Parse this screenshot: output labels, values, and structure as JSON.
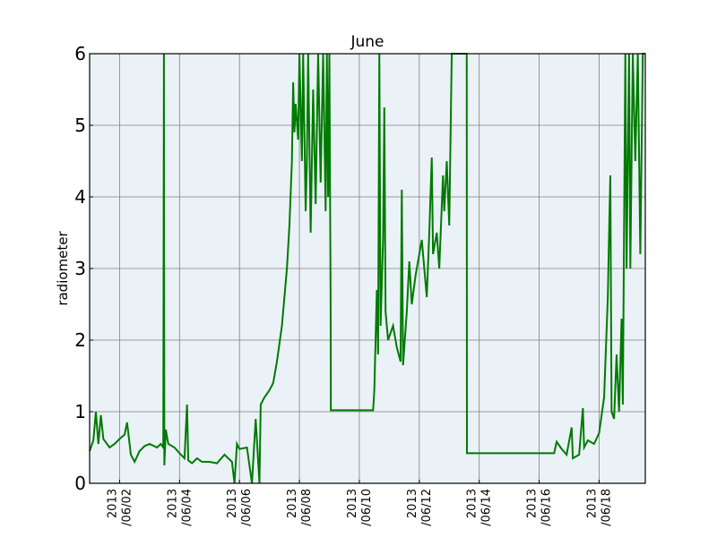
{
  "chart_data": {
    "type": "line",
    "title": "June",
    "xlabel": "",
    "ylabel": "radiometer",
    "ylim": [
      0,
      6
    ],
    "xlim": [
      "2013-06-01 00:00",
      "2013-06-19 13:00"
    ],
    "y_ticks": [
      "0",
      "1",
      "2",
      "3",
      "4",
      "5",
      "6"
    ],
    "x_ticks": [
      {
        "date": "2013-06-02",
        "label_line1": "2013",
        "label_line2": "/06/02"
      },
      {
        "date": "2013-06-04",
        "label_line1": "2013",
        "label_line2": "/06/04"
      },
      {
        "date": "2013-06-06",
        "label_line1": "2013",
        "label_line2": "/06/06"
      },
      {
        "date": "2013-06-08",
        "label_line1": "2013",
        "label_line2": "/06/08"
      },
      {
        "date": "2013-06-10",
        "label_line1": "2013",
        "label_line2": "/06/10"
      },
      {
        "date": "2013-06-12",
        "label_line1": "2013",
        "label_line2": "/06/12"
      },
      {
        "date": "2013-06-14",
        "label_line1": "2013",
        "label_line2": "/06/14"
      },
      {
        "date": "2013-06-16",
        "label_line1": "2013",
        "label_line2": "/06/16"
      },
      {
        "date": "2013-06-18",
        "label_line1": "2013",
        "label_line2": "/06/18"
      }
    ],
    "grid": true,
    "colors": {
      "line": "#007a00",
      "plot_background": "#eaf2f8",
      "grid": "#7f7f7f"
    },
    "series": [
      {
        "points": [
          [
            "2013-06-01 00:00",
            0.45
          ],
          [
            "2013-06-01 03:00",
            0.6
          ],
          [
            "2013-06-01 05:00",
            1.0
          ],
          [
            "2013-06-01 07:00",
            0.55
          ],
          [
            "2013-06-01 09:00",
            0.95
          ],
          [
            "2013-06-01 11:00",
            0.62
          ],
          [
            "2013-06-01 16:00",
            0.5
          ],
          [
            "2013-06-01 20:00",
            0.55
          ],
          [
            "2013-06-02 00:00",
            0.62
          ],
          [
            "2013-06-02 04:00",
            0.68
          ],
          [
            "2013-06-02 06:00",
            0.85
          ],
          [
            "2013-06-02 09:00",
            0.4
          ],
          [
            "2013-06-02 12:00",
            0.3
          ],
          [
            "2013-06-02 16:00",
            0.45
          ],
          [
            "2013-06-02 20:00",
            0.52
          ],
          [
            "2013-06-03 00:00",
            0.55
          ],
          [
            "2013-06-03 06:00",
            0.5
          ],
          [
            "2013-06-03 09:00",
            0.55
          ],
          [
            "2013-06-03 11:00",
            0.5
          ],
          [
            "2013-06-03 11:30",
            6.0
          ],
          [
            "2013-06-03 11:50",
            0.25
          ],
          [
            "2013-06-03 13:00",
            0.75
          ],
          [
            "2013-06-03 15:00",
            0.55
          ],
          [
            "2013-06-03 20:00",
            0.5
          ],
          [
            "2013-06-04 00:00",
            0.42
          ],
          [
            "2013-06-04 04:00",
            0.35
          ],
          [
            "2013-06-04 06:00",
            1.1
          ],
          [
            "2013-06-04 07:00",
            0.32
          ],
          [
            "2013-06-04 10:00",
            0.28
          ],
          [
            "2013-06-04 14:00",
            0.35
          ],
          [
            "2013-06-04 18:00",
            0.3
          ],
          [
            "2013-06-05 00:00",
            0.3
          ],
          [
            "2013-06-05 06:00",
            0.28
          ],
          [
            "2013-06-05 12:00",
            0.4
          ],
          [
            "2013-06-05 18:00",
            0.3
          ],
          [
            "2013-06-05 20:00",
            0.0
          ],
          [
            "2013-06-05 22:00",
            0.55
          ],
          [
            "2013-06-06 00:00",
            0.48
          ],
          [
            "2013-06-06 06:00",
            0.5
          ],
          [
            "2013-06-06 10:00",
            0.0
          ],
          [
            "2013-06-06 13:00",
            0.9
          ],
          [
            "2013-06-06 16:00",
            0.0
          ],
          [
            "2013-06-06 17:00",
            1.1
          ],
          [
            "2013-06-06 20:00",
            1.2
          ],
          [
            "2013-06-07 00:00",
            1.3
          ],
          [
            "2013-06-07 03:00",
            1.4
          ],
          [
            "2013-06-07 06:00",
            1.7
          ],
          [
            "2013-06-07 10:00",
            2.2
          ],
          [
            "2013-06-07 14:00",
            3.0
          ],
          [
            "2013-06-07 16:00",
            3.6
          ],
          [
            "2013-06-07 18:00",
            4.5
          ],
          [
            "2013-06-07 19:00",
            5.6
          ],
          [
            "2013-06-07 20:00",
            4.9
          ],
          [
            "2013-06-07 21:00",
            5.3
          ],
          [
            "2013-06-07 23:00",
            4.8
          ],
          [
            "2013-06-08 00:00",
            6.0
          ],
          [
            "2013-06-08 02:00",
            4.5
          ],
          [
            "2013-06-08 03:00",
            6.0
          ],
          [
            "2013-06-08 05:00",
            3.8
          ],
          [
            "2013-06-08 06:00",
            4.5
          ],
          [
            "2013-06-08 07:00",
            6.0
          ],
          [
            "2013-06-08 09:00",
            3.5
          ],
          [
            "2013-06-08 11:00",
            5.5
          ],
          [
            "2013-06-08 13:00",
            3.9
          ],
          [
            "2013-06-08 15:00",
            6.0
          ],
          [
            "2013-06-08 17:00",
            4.2
          ],
          [
            "2013-06-08 19:00",
            6.0
          ],
          [
            "2013-06-08 21:00",
            3.8
          ],
          [
            "2013-06-08 22:00",
            6.0
          ],
          [
            "2013-06-08 23:00",
            4.0
          ],
          [
            "2013-06-09 00:00",
            6.0
          ],
          [
            "2013-06-09 01:00",
            2.5
          ],
          [
            "2013-06-09 01:10",
            1.02
          ],
          [
            "2013-06-10 11:00",
            1.02
          ],
          [
            "2013-06-10 12:00",
            1.3
          ],
          [
            "2013-06-10 14:00",
            2.7
          ],
          [
            "2013-06-10 15:00",
            1.8
          ],
          [
            "2013-06-10 16:00",
            6.0
          ],
          [
            "2013-06-10 17:00",
            2.2
          ],
          [
            "2013-06-10 19:00",
            3.4
          ],
          [
            "2013-06-10 20:00",
            5.25
          ],
          [
            "2013-06-10 21:00",
            2.4
          ],
          [
            "2013-06-10 23:00",
            2.0
          ],
          [
            "2013-06-11 03:00",
            2.2
          ],
          [
            "2013-06-11 06:00",
            1.9
          ],
          [
            "2013-06-11 09:00",
            1.7
          ],
          [
            "2013-06-11 10:00",
            4.1
          ],
          [
            "2013-06-11 11:00",
            1.65
          ],
          [
            "2013-06-11 14:00",
            2.4
          ],
          [
            "2013-06-11 16:00",
            3.1
          ],
          [
            "2013-06-11 18:00",
            2.5
          ],
          [
            "2013-06-11 21:00",
            2.9
          ],
          [
            "2013-06-12 00:00",
            3.2
          ],
          [
            "2013-06-12 02:00",
            3.4
          ],
          [
            "2013-06-12 04:00",
            3.0
          ],
          [
            "2013-06-12 06:00",
            2.6
          ],
          [
            "2013-06-12 08:00",
            3.5
          ],
          [
            "2013-06-12 10:00",
            4.55
          ],
          [
            "2013-06-12 11:00",
            3.2
          ],
          [
            "2013-06-12 14:00",
            3.5
          ],
          [
            "2013-06-12 16:00",
            3.0
          ],
          [
            "2013-06-12 19:00",
            4.3
          ],
          [
            "2013-06-12 20:00",
            3.8
          ],
          [
            "2013-06-12 22:00",
            4.5
          ],
          [
            "2013-06-13 00:00",
            3.6
          ],
          [
            "2013-06-13 02:00",
            6.0
          ],
          [
            "2013-06-13 14:00",
            6.0
          ],
          [
            "2013-06-13 14:10",
            0.42
          ],
          [
            "2013-06-16 12:00",
            0.42
          ],
          [
            "2013-06-16 14:00",
            0.58
          ],
          [
            "2013-06-16 18:00",
            0.48
          ],
          [
            "2013-06-16 22:00",
            0.4
          ],
          [
            "2013-06-17 02:00",
            0.78
          ],
          [
            "2013-06-17 03:00",
            0.35
          ],
          [
            "2013-06-17 08:00",
            0.4
          ],
          [
            "2013-06-17 11:00",
            1.05
          ],
          [
            "2013-06-17 12:00",
            0.5
          ],
          [
            "2013-06-17 15:00",
            0.6
          ],
          [
            "2013-06-17 20:00",
            0.55
          ],
          [
            "2013-06-18 00:00",
            0.7
          ],
          [
            "2013-06-18 04:00",
            1.2
          ],
          [
            "2013-06-18 07:00",
            2.6
          ],
          [
            "2013-06-18 08:00",
            3.5
          ],
          [
            "2013-06-18 09:00",
            4.3
          ],
          [
            "2013-06-18 10:00",
            1.0
          ],
          [
            "2013-06-18 12:00",
            0.9
          ],
          [
            "2013-06-18 14:00",
            1.8
          ],
          [
            "2013-06-18 16:00",
            1.0
          ],
          [
            "2013-06-18 18:00",
            2.3
          ],
          [
            "2013-06-18 19:00",
            1.1
          ],
          [
            "2013-06-18 21:00",
            6.0
          ],
          [
            "2013-06-18 22:00",
            3.0
          ],
          [
            "2013-06-19 00:00",
            6.0
          ],
          [
            "2013-06-19 01:00",
            3.0
          ],
          [
            "2013-06-19 03:00",
            6.0
          ],
          [
            "2013-06-19 05:00",
            4.5
          ],
          [
            "2013-06-19 07:00",
            6.0
          ],
          [
            "2013-06-19 09:00",
            3.2
          ],
          [
            "2013-06-19 11:00",
            6.0
          ],
          [
            "2013-06-19 13:00",
            6.0
          ]
        ]
      }
    ]
  }
}
